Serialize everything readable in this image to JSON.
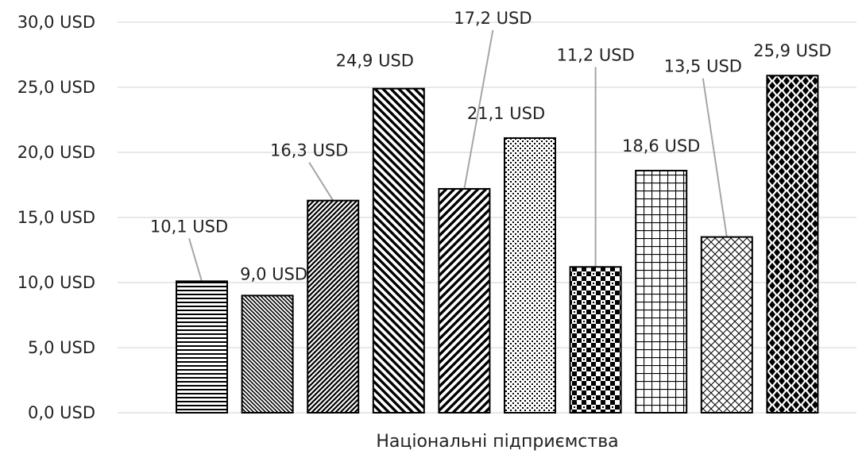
{
  "chart_data": {
    "type": "bar",
    "categories": [
      "",
      "",
      "",
      "",
      "",
      "",
      "",
      "",
      "",
      ""
    ],
    "values": [
      10.1,
      9.0,
      16.3,
      24.9,
      17.2,
      21.1,
      11.2,
      18.6,
      13.5,
      25.9
    ],
    "value_labels": [
      "10,1 USD",
      "9,0 USD",
      "16,3 USD",
      "24,9 USD",
      "17,2 USD",
      "21,1 USD",
      "11,2 USD",
      "18,6 USD",
      "13,5 USD",
      "25,9 USD"
    ],
    "patterns": [
      "horizontal-lines",
      "fine-diagonal-down",
      "diagonal-up",
      "wide-diagonal-down",
      "wide-diagonal-up",
      "dots",
      "checker",
      "grid",
      "diamond-lattice",
      "diamonds"
    ],
    "title": "",
    "xlabel": "Національні підприємства",
    "ylabel": "",
    "ylim": [
      0,
      30
    ],
    "y_ticks": [
      0,
      5,
      10,
      15,
      20,
      25,
      30
    ],
    "y_tick_labels": [
      "0,0 USD",
      "5,0 USD",
      "10,0 USD",
      "15,0 USD",
      "20,0 USD",
      "25,0 USD",
      "30,0 USD"
    ],
    "grid": true,
    "legend": "none",
    "colors": {
      "bar_fill": "#ffffff",
      "bar_stroke": "#000000",
      "pattern": "#000000",
      "grid": "#d9d9d9",
      "leader": "#a6a6a6"
    }
  }
}
